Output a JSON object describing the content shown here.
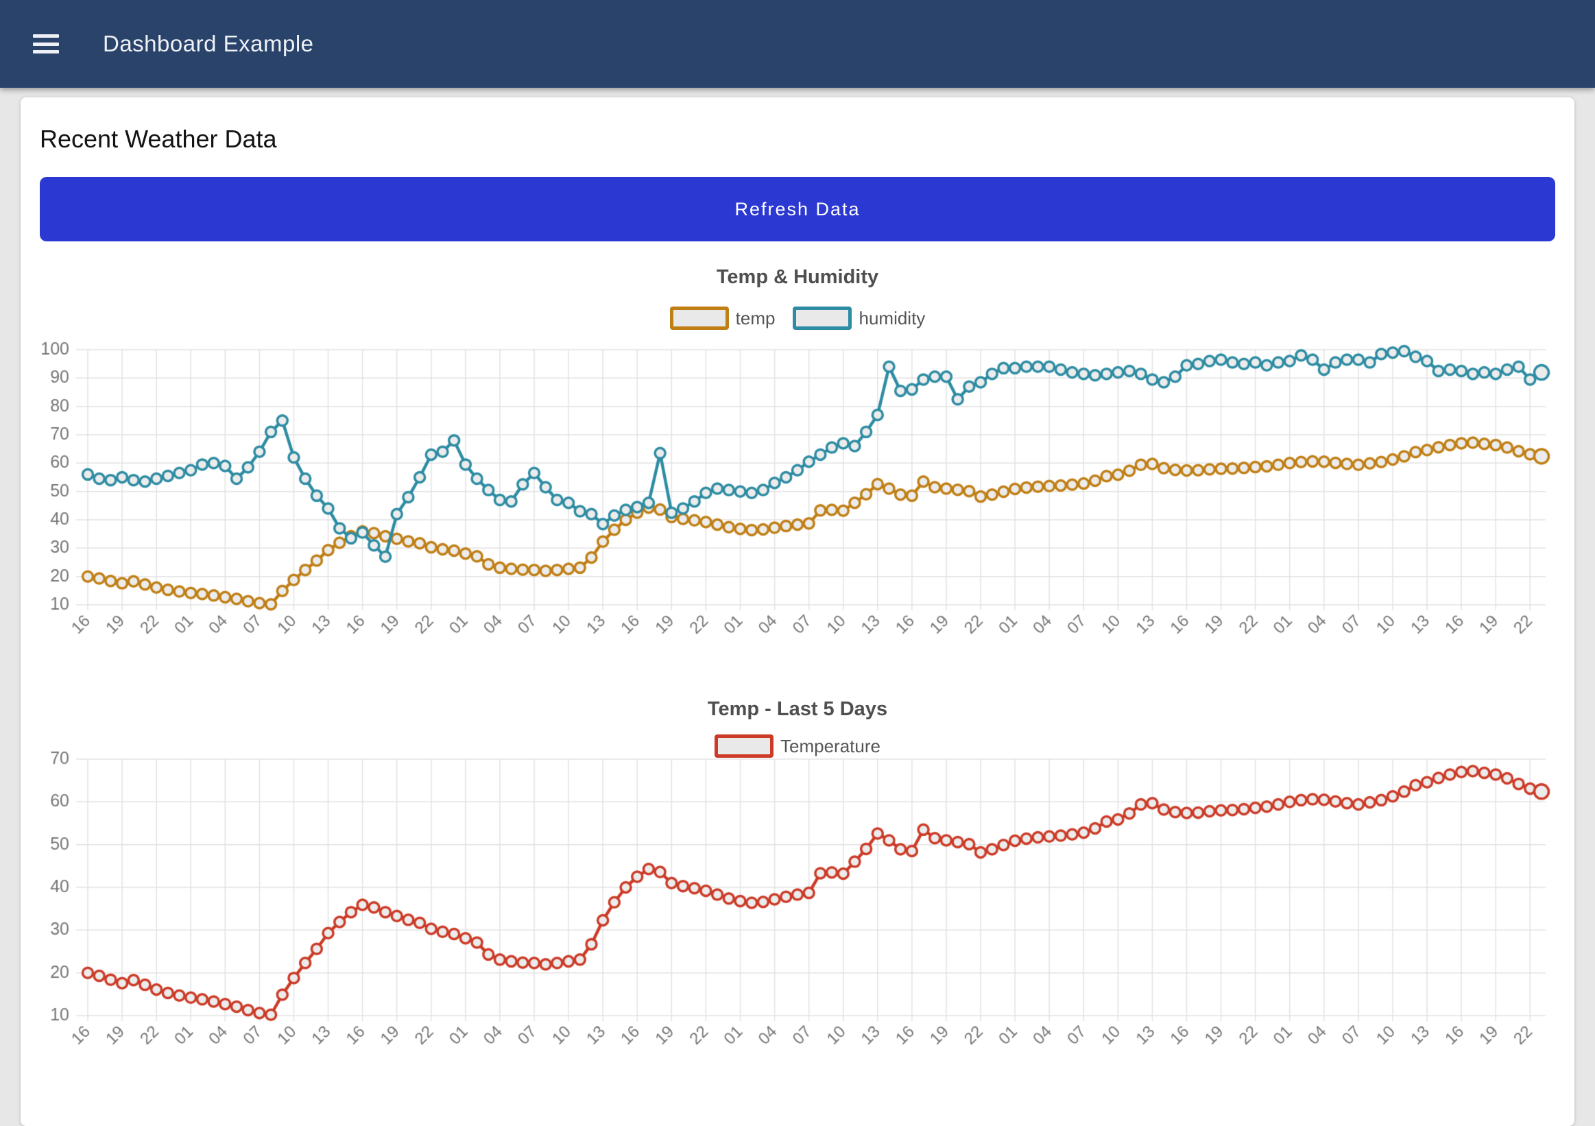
{
  "header": {
    "title": "Dashboard Example"
  },
  "main": {
    "heading": "Recent Weather Data",
    "refresh_label": "Refresh Data"
  },
  "colors": {
    "header_bg": "#2a436b",
    "button_blue": "#2c38d2",
    "temp_gold": "#c07f15",
    "humidity_teal": "#2d8ca3",
    "temperature_red": "#cc3b27",
    "grid": "#e2e2e2",
    "axis_label": "#757575",
    "point_fill": "#ececec",
    "title_gray": "#4f4f4f"
  },
  "chart_data": [
    {
      "type": "line",
      "title": "Temp & Humidity",
      "legend_position": "top-center",
      "grid": true,
      "ylim": [
        10,
        100
      ],
      "y_ticks": [
        10,
        20,
        30,
        40,
        50,
        60,
        70,
        80,
        90,
        100
      ],
      "points_per_tick": 3,
      "x_tick_labels": [
        "16",
        "19",
        "22",
        "01",
        "04",
        "07",
        "10",
        "13",
        "16",
        "19",
        "22",
        "01",
        "04",
        "07",
        "10",
        "13",
        "16",
        "19",
        "22",
        "01",
        "04",
        "07",
        "10",
        "13",
        "16",
        "19",
        "22",
        "01",
        "04",
        "07",
        "10",
        "13",
        "16",
        "19",
        "22",
        "01",
        "04",
        "07",
        "10",
        "13",
        "16",
        "19",
        "22"
      ],
      "series": [
        {
          "name": "temp",
          "color": "#c07f15",
          "values": [
            20,
            19.3,
            18.4,
            17.6,
            18.3,
            17.2,
            16.1,
            15.3,
            14.7,
            14.2,
            13.8,
            13.3,
            12.7,
            12.1,
            11.3,
            10.6,
            10.2,
            14.9,
            18.8,
            22.3,
            25.6,
            29.3,
            31.9,
            34.2,
            35.9,
            35.3,
            34.2,
            33.3,
            32.4,
            31.7,
            30.3,
            29.6,
            29.1,
            28.1,
            27.1,
            24.3,
            23.1,
            22.7,
            22.4,
            22.3,
            22,
            22.3,
            22.7,
            23.1,
            26.7,
            32.3,
            36.5,
            40,
            42.5,
            44.3,
            43.6,
            41,
            40.3,
            39.8,
            39.2,
            38.3,
            37.4,
            36.8,
            36.4,
            36.6,
            37.2,
            37.8,
            38.3,
            38.7,
            43.3,
            43.5,
            43.2,
            46,
            49,
            52.6,
            51,
            48.9,
            48.5,
            53.5,
            51.5,
            51,
            50.6,
            50.1,
            48.2,
            48.9,
            49.9,
            50.9,
            51.4,
            51.7,
            51.9,
            52.1,
            52.4,
            52.8,
            53.8,
            55.4,
            55.9,
            57.3,
            59.4,
            59.7,
            58.2,
            57.6,
            57.4,
            57.5,
            57.8,
            58,
            58.1,
            58.3,
            58.6,
            58.9,
            59.4,
            60,
            60.4,
            60.6,
            60.5,
            60.1,
            59.7,
            59.4,
            59.9,
            60.4,
            61.3,
            62.4,
            63.9,
            64.6,
            65.6,
            66.4,
            67,
            67.2,
            66.8,
            66.4,
            65.5,
            64.2,
            63.1,
            62.4
          ]
        },
        {
          "name": "humidity",
          "color": "#2d8ca3",
          "values": [
            56,
            54.5,
            54,
            55,
            54,
            53.5,
            54.5,
            55.5,
            56.5,
            57.5,
            59.5,
            60,
            59,
            54.5,
            58.5,
            64,
            71,
            75,
            62,
            54.5,
            48.5,
            44,
            37,
            33.5,
            35.5,
            31,
            27,
            42,
            48,
            55,
            63,
            64,
            68,
            59.5,
            54.5,
            50.5,
            47,
            46.5,
            52.5,
            56.5,
            51.5,
            47,
            46,
            43,
            42,
            38.5,
            41.5,
            43.5,
            44.5,
            46,
            63.5,
            42.5,
            44,
            46.5,
            49.5,
            51,
            50.5,
            50,
            49.5,
            50.5,
            53,
            55,
            57.5,
            60.5,
            63,
            65.5,
            67,
            66,
            71,
            77,
            94,
            85.5,
            86,
            89.5,
            90.5,
            90.5,
            82.5,
            87,
            88.5,
            91.5,
            93.5,
            93.5,
            94,
            94,
            94,
            93,
            92,
            91.5,
            91,
            91.5,
            92,
            92.5,
            91.5,
            89.5,
            88.5,
            90.5,
            94.5,
            95,
            96,
            96.5,
            95.5,
            95,
            95.5,
            94.5,
            95.5,
            96,
            98,
            96.5,
            93,
            95.5,
            96.5,
            96.5,
            95.5,
            98.5,
            99,
            99.5,
            97.5,
            96,
            92.5,
            93,
            92.5,
            91.5,
            92,
            91.5,
            93,
            94,
            89.5,
            92
          ]
        }
      ]
    },
    {
      "type": "line",
      "title": "Temp - Last 5 Days",
      "legend_position": "top-center",
      "grid": true,
      "ylim": [
        10,
        70
      ],
      "y_ticks": [
        10,
        20,
        30,
        40,
        50,
        60,
        70
      ],
      "points_per_tick": 3,
      "x_tick_labels": [
        "16",
        "19",
        "22",
        "01",
        "04",
        "07",
        "10",
        "13",
        "16",
        "19",
        "22",
        "01",
        "04",
        "07",
        "10",
        "13",
        "16",
        "19",
        "22",
        "01",
        "04",
        "07",
        "10",
        "13",
        "16",
        "19",
        "22",
        "01",
        "04",
        "07",
        "10",
        "13",
        "16",
        "19",
        "22",
        "01",
        "04",
        "07",
        "10",
        "13",
        "16",
        "19",
        "22"
      ],
      "series": [
        {
          "name": "Temperature",
          "color": "#cc3b27",
          "values": [
            20,
            19.3,
            18.4,
            17.6,
            18.3,
            17.2,
            16.1,
            15.3,
            14.7,
            14.2,
            13.8,
            13.3,
            12.7,
            12.1,
            11.3,
            10.6,
            10.2,
            14.9,
            18.8,
            22.3,
            25.6,
            29.3,
            31.9,
            34.2,
            35.9,
            35.3,
            34.2,
            33.3,
            32.4,
            31.7,
            30.3,
            29.6,
            29.1,
            28.1,
            27.1,
            24.3,
            23.1,
            22.7,
            22.4,
            22.3,
            22,
            22.3,
            22.7,
            23.1,
            26.7,
            32.3,
            36.5,
            40,
            42.5,
            44.3,
            43.6,
            41,
            40.3,
            39.8,
            39.2,
            38.3,
            37.4,
            36.8,
            36.4,
            36.6,
            37.2,
            37.8,
            38.3,
            38.7,
            43.3,
            43.5,
            43.2,
            46,
            49,
            52.6,
            51,
            48.9,
            48.5,
            53.5,
            51.5,
            51,
            50.6,
            50.1,
            48.2,
            48.9,
            49.9,
            50.9,
            51.4,
            51.7,
            51.9,
            52.1,
            52.4,
            52.8,
            53.8,
            55.4,
            55.9,
            57.3,
            59.4,
            59.7,
            58.2,
            57.6,
            57.4,
            57.5,
            57.8,
            58,
            58.1,
            58.3,
            58.6,
            58.9,
            59.4,
            60,
            60.4,
            60.6,
            60.5,
            60.1,
            59.7,
            59.4,
            59.9,
            60.4,
            61.3,
            62.4,
            63.9,
            64.6,
            65.6,
            66.4,
            67,
            67.2,
            66.8,
            66.4,
            65.5,
            64.2,
            63.1,
            62.4
          ]
        }
      ]
    }
  ]
}
